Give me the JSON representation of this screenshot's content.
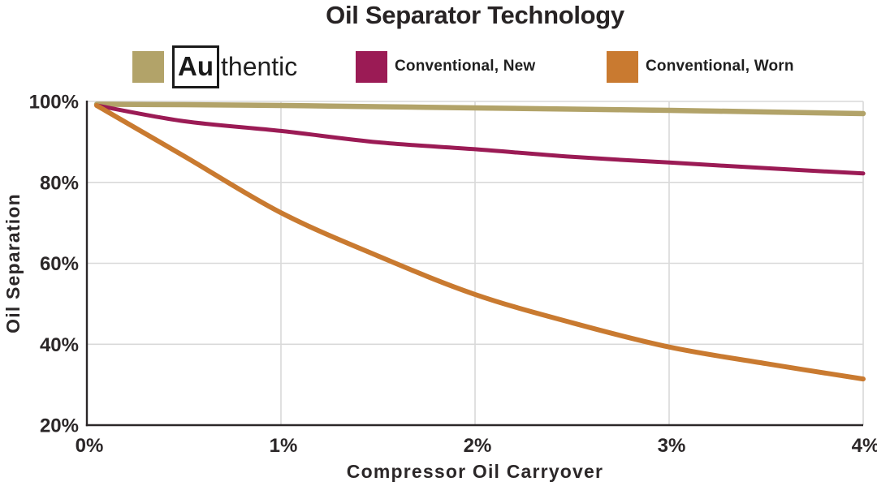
{
  "title": "Oil Separator Technology",
  "legend": {
    "items": [
      {
        "label": "Authentic",
        "symbol": "Au",
        "label_suffix": "thentic",
        "color": "#b2a369"
      },
      {
        "label": "Conventional, New",
        "color": "#9b1b55"
      },
      {
        "label": "Conventional, Worn",
        "color": "#c97a30"
      }
    ]
  },
  "chart_data": {
    "type": "line",
    "title": "Oil Separator Technology",
    "xlabel": "Compressor Oil Carryover",
    "ylabel": "Oil Separation",
    "xlim": [
      0,
      4
    ],
    "ylim": [
      20,
      100
    ],
    "x_tick_values": [
      0,
      1,
      2,
      3,
      4
    ],
    "x_tick_labels": [
      "0%",
      "1%",
      "2%",
      "3%",
      "4%"
    ],
    "y_tick_values": [
      20,
      40,
      60,
      80,
      100
    ],
    "y_tick_labels": [
      "20%",
      "40%",
      "60%",
      "80%",
      "100%"
    ],
    "x_grid": [
      1,
      2,
      3
    ],
    "y_grid": [
      40,
      60,
      80
    ],
    "grid": true,
    "legend_position": "top",
    "grid_color": "#d9d9d9",
    "axis_color": "#2b2728",
    "series": [
      {
        "name": "Authentic",
        "color": "#b2a369",
        "stroke_width": 6.5,
        "points": [
          [
            0.05,
            99.3
          ],
          [
            0.5,
            99.2
          ],
          [
            1,
            99.0
          ],
          [
            1.5,
            98.7
          ],
          [
            2,
            98.4
          ],
          [
            2.5,
            98.1
          ],
          [
            3,
            97.8
          ],
          [
            3.5,
            97.4
          ],
          [
            4,
            97.0
          ]
        ]
      },
      {
        "name": "Conventional, New",
        "color": "#9b1b55",
        "stroke_width": 5,
        "points": [
          [
            0.05,
            99.0
          ],
          [
            0.5,
            95.1
          ],
          [
            1,
            92.7
          ],
          [
            1.5,
            89.9
          ],
          [
            2,
            88.2
          ],
          [
            2.5,
            86.3
          ],
          [
            3,
            84.9
          ],
          [
            3.5,
            83.5
          ],
          [
            4,
            82.2
          ]
        ]
      },
      {
        "name": "Conventional, Worn",
        "color": "#c97a30",
        "stroke_width": 6,
        "points": [
          [
            0.05,
            99.0
          ],
          [
            0.5,
            86.5
          ],
          [
            1,
            72.5
          ],
          [
            1.5,
            61.8
          ],
          [
            2,
            52.3
          ],
          [
            2.5,
            45.3
          ],
          [
            3,
            39.3
          ],
          [
            3.5,
            35.2
          ],
          [
            4,
            31.4
          ]
        ]
      }
    ]
  }
}
